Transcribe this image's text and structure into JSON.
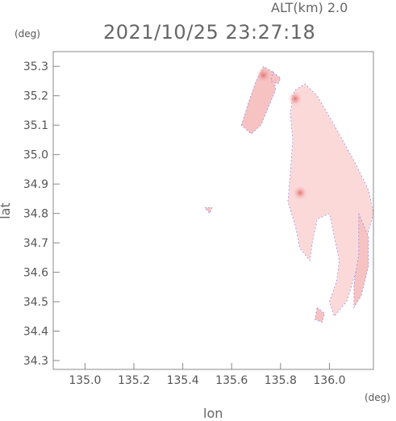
{
  "header": {
    "alt_label": "ALT(km) 2.0",
    "timestamp": "2021/10/25 23:27:18"
  },
  "chart_data": {
    "type": "heatmap",
    "title": "2021/10/25 23:27:18",
    "subtitle": "ALT(km) 2.0",
    "xlabel": "lon",
    "ylabel": "lat",
    "x_unit": "(deg)",
    "y_unit": "(deg)",
    "xlim": [
      134.87,
      136.18
    ],
    "ylim": [
      34.27,
      35.35
    ],
    "x_ticks": [
      "135.0",
      "135.2",
      "135.4",
      "135.6",
      "135.8",
      "136.0"
    ],
    "y_ticks": [
      "35.3",
      "35.2",
      "35.1",
      "35.0",
      "34.9",
      "34.8",
      "34.7",
      "34.6",
      "34.5",
      "34.4",
      "34.3"
    ],
    "grid": false,
    "colors": {
      "field_light": "#fbd9d9",
      "field_mid": "#f6c2c2",
      "field_strong": "#ef9a9a",
      "edge": "#7f7fef",
      "frame": "#888888"
    },
    "regions": [
      {
        "name": "main-echo",
        "points": [
          [
            135.86,
            35.22
          ],
          [
            135.9,
            35.24
          ],
          [
            135.95,
            35.2
          ],
          [
            136.02,
            35.1
          ],
          [
            136.1,
            34.98
          ],
          [
            136.16,
            34.88
          ],
          [
            136.18,
            34.8
          ],
          [
            136.14,
            34.68
          ],
          [
            136.1,
            34.58
          ],
          [
            136.07,
            34.5
          ],
          [
            136.02,
            34.45
          ],
          [
            136.0,
            34.5
          ],
          [
            136.03,
            34.57
          ],
          [
            136.04,
            34.64
          ],
          [
            136.02,
            34.72
          ],
          [
            136.0,
            34.8
          ],
          [
            135.95,
            34.78
          ],
          [
            135.93,
            34.7
          ],
          [
            135.92,
            34.64
          ],
          [
            135.88,
            34.68
          ],
          [
            135.86,
            34.76
          ],
          [
            135.83,
            34.84
          ],
          [
            135.84,
            34.94
          ],
          [
            135.85,
            35.05
          ],
          [
            135.84,
            35.14
          ],
          [
            135.85,
            35.2
          ]
        ]
      },
      {
        "name": "north-strip",
        "points": [
          [
            135.64,
            35.1
          ],
          [
            135.67,
            35.18
          ],
          [
            135.7,
            35.25
          ],
          [
            135.73,
            35.3
          ],
          [
            135.77,
            35.28
          ],
          [
            135.78,
            35.22
          ],
          [
            135.75,
            35.16
          ],
          [
            135.72,
            35.1
          ],
          [
            135.68,
            35.07
          ]
        ]
      },
      {
        "name": "north-cell",
        "points": [
          [
            135.77,
            35.28
          ],
          [
            135.8,
            35.26
          ],
          [
            135.79,
            35.24
          ],
          [
            135.76,
            35.25
          ]
        ]
      },
      {
        "name": "east-band",
        "points": [
          [
            136.12,
            34.8
          ],
          [
            136.16,
            34.72
          ],
          [
            136.16,
            34.62
          ],
          [
            136.13,
            34.52
          ],
          [
            136.1,
            34.48
          ],
          [
            136.1,
            34.56
          ],
          [
            136.12,
            34.66
          ]
        ]
      },
      {
        "name": "south-cell",
        "points": [
          [
            135.95,
            34.48
          ],
          [
            135.98,
            34.46
          ],
          [
            135.97,
            34.43
          ],
          [
            135.94,
            34.44
          ]
        ]
      },
      {
        "name": "west-speck",
        "points": [
          [
            135.49,
            34.82
          ],
          [
            135.52,
            34.82
          ],
          [
            135.51,
            34.8
          ]
        ]
      }
    ],
    "cores": [
      {
        "lon": 135.86,
        "lat": 35.19
      },
      {
        "lon": 135.73,
        "lat": 35.27
      },
      {
        "lon": 135.88,
        "lat": 34.87
      }
    ]
  }
}
